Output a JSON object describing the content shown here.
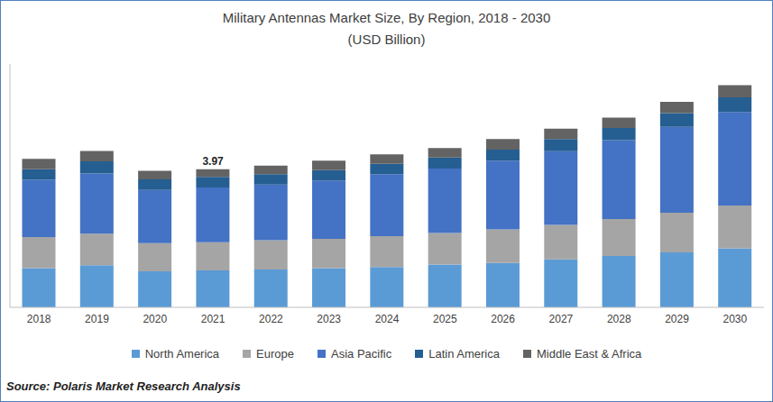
{
  "chart_data": {
    "type": "bar",
    "title": "Military Antennas Market Size, By Region, 2018 - 2030",
    "subtitle": "(USD Billion)",
    "source": "Source: Polaris Market Research Analysis",
    "categories": [
      "2018",
      "2019",
      "2020",
      "2021",
      "2022",
      "2023",
      "2024",
      "2025",
      "2026",
      "2027",
      "2028",
      "2029",
      "2030"
    ],
    "series": [
      {
        "name": "North America",
        "color": "#5b9bd5",
        "values": [
          1.13,
          1.21,
          1.04,
          1.06,
          1.09,
          1.13,
          1.16,
          1.23,
          1.28,
          1.38,
          1.48,
          1.58,
          1.7
        ]
      },
      {
        "name": "Europe",
        "color": "#a5a5a5",
        "values": [
          0.89,
          0.91,
          0.81,
          0.81,
          0.84,
          0.84,
          0.89,
          0.91,
          0.96,
          0.99,
          1.06,
          1.14,
          1.23
        ]
      },
      {
        "name": "Asia Pacific",
        "color": "#4472c4",
        "values": [
          1.65,
          1.73,
          1.53,
          1.58,
          1.6,
          1.68,
          1.78,
          1.85,
          1.98,
          2.12,
          2.27,
          2.47,
          2.69
        ]
      },
      {
        "name": "Latin America",
        "color": "#255e91",
        "values": [
          0.3,
          0.35,
          0.3,
          0.3,
          0.3,
          0.3,
          0.3,
          0.32,
          0.32,
          0.35,
          0.35,
          0.4,
          0.42
        ]
      },
      {
        "name": "Middle East & Africa",
        "color": "#636363",
        "values": [
          0.3,
          0.3,
          0.25,
          0.22,
          0.25,
          0.27,
          0.27,
          0.27,
          0.3,
          0.3,
          0.3,
          0.32,
          0.35
        ]
      }
    ],
    "annotations": [
      {
        "category": "2021",
        "value": 3.97,
        "label": "3.97"
      }
    ],
    "ylim": [
      0,
      7
    ],
    "stacked": true,
    "grid": false,
    "legend": "bottom",
    "tick_labels": "x"
  }
}
